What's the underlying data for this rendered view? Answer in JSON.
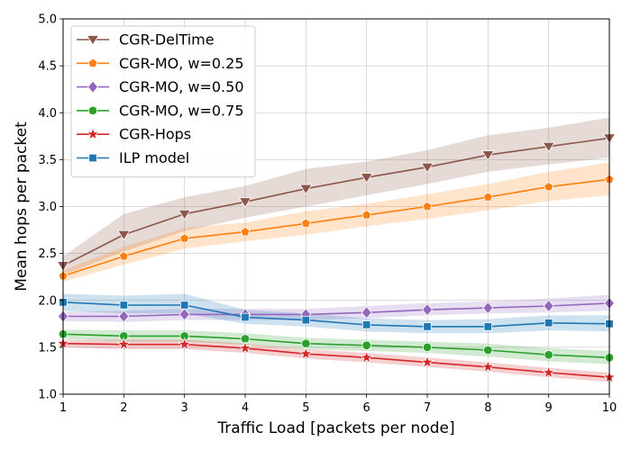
{
  "chart_data": {
    "type": "line",
    "xlabel": "Traffic Load [packets per node]",
    "ylabel": "Mean hops per packet",
    "xlim": [
      1,
      10
    ],
    "ylim": [
      1.0,
      5.0
    ],
    "x": [
      1,
      2,
      3,
      4,
      5,
      6,
      7,
      8,
      9,
      10
    ],
    "x_ticks": [
      "1",
      "2",
      "3",
      "4",
      "5",
      "6",
      "7",
      "8",
      "9",
      "10"
    ],
    "y_ticks": [
      "1.0",
      "1.5",
      "2.0",
      "2.5",
      "3.0",
      "3.5",
      "4.0",
      "4.5",
      "5.0"
    ],
    "y_tick_values": [
      1.0,
      1.5,
      2.0,
      2.5,
      3.0,
      3.5,
      4.0,
      4.5,
      5.0
    ],
    "grid": true,
    "legend_position": "top-left",
    "series": [
      {
        "name": "CGR-DelTime",
        "color": "#8c564b",
        "marker": "triangle-down",
        "values": [
          2.37,
          2.7,
          2.92,
          3.05,
          3.19,
          3.31,
          3.42,
          3.55,
          3.64,
          3.73
        ],
        "lower": [
          2.27,
          2.52,
          2.74,
          2.88,
          3.0,
          3.12,
          3.24,
          3.37,
          3.45,
          3.52
        ],
        "upper": [
          2.47,
          2.92,
          3.1,
          3.22,
          3.4,
          3.48,
          3.6,
          3.76,
          3.84,
          3.95
        ]
      },
      {
        "name": "CGR-MO, w=0.25",
        "color": "#ff7f0e",
        "marker": "pentagon",
        "values": [
          2.26,
          2.47,
          2.66,
          2.73,
          2.82,
          2.91,
          3.0,
          3.1,
          3.21,
          3.29
        ],
        "lower": [
          2.2,
          2.38,
          2.55,
          2.63,
          2.7,
          2.79,
          2.87,
          2.96,
          3.06,
          3.12
        ],
        "upper": [
          2.32,
          2.57,
          2.77,
          2.83,
          2.95,
          3.03,
          3.13,
          3.24,
          3.37,
          3.47
        ]
      },
      {
        "name": "CGR-MO, w=0.50",
        "color": "#9467bd",
        "marker": "diamond",
        "values": [
          1.83,
          1.83,
          1.85,
          1.85,
          1.85,
          1.87,
          1.9,
          1.92,
          1.94,
          1.97
        ],
        "lower": [
          1.78,
          1.77,
          1.79,
          1.79,
          1.79,
          1.81,
          1.84,
          1.86,
          1.87,
          1.89
        ],
        "upper": [
          1.88,
          1.89,
          1.91,
          1.91,
          1.91,
          1.94,
          1.97,
          1.99,
          2.02,
          2.06
        ]
      },
      {
        "name": "CGR-MO, w=0.75",
        "color": "#2ca02c",
        "marker": "circle",
        "values": [
          1.64,
          1.62,
          1.62,
          1.59,
          1.54,
          1.52,
          1.5,
          1.47,
          1.42,
          1.39
        ],
        "lower": [
          1.59,
          1.56,
          1.56,
          1.53,
          1.48,
          1.46,
          1.44,
          1.4,
          1.35,
          1.32
        ],
        "upper": [
          1.69,
          1.68,
          1.68,
          1.65,
          1.6,
          1.58,
          1.56,
          1.54,
          1.49,
          1.46
        ]
      },
      {
        "name": "CGR-Hops",
        "color": "#d62728",
        "marker": "star",
        "values": [
          1.54,
          1.53,
          1.53,
          1.49,
          1.43,
          1.39,
          1.34,
          1.29,
          1.23,
          1.18
        ],
        "lower": [
          1.5,
          1.48,
          1.48,
          1.44,
          1.38,
          1.34,
          1.29,
          1.24,
          1.18,
          1.13
        ],
        "upper": [
          1.58,
          1.58,
          1.58,
          1.54,
          1.48,
          1.44,
          1.39,
          1.34,
          1.28,
          1.23
        ]
      },
      {
        "name": "ILP model",
        "color": "#1f77b4",
        "marker": "square",
        "values": [
          1.98,
          1.95,
          1.95,
          1.82,
          1.79,
          1.74,
          1.72,
          1.72,
          1.76,
          1.75
        ],
        "lower": [
          1.89,
          1.86,
          1.86,
          1.75,
          1.72,
          1.67,
          1.65,
          1.65,
          1.68,
          1.67
        ],
        "upper": [
          2.07,
          2.05,
          2.07,
          1.9,
          1.86,
          1.81,
          1.79,
          1.8,
          1.84,
          1.84
        ]
      }
    ]
  }
}
